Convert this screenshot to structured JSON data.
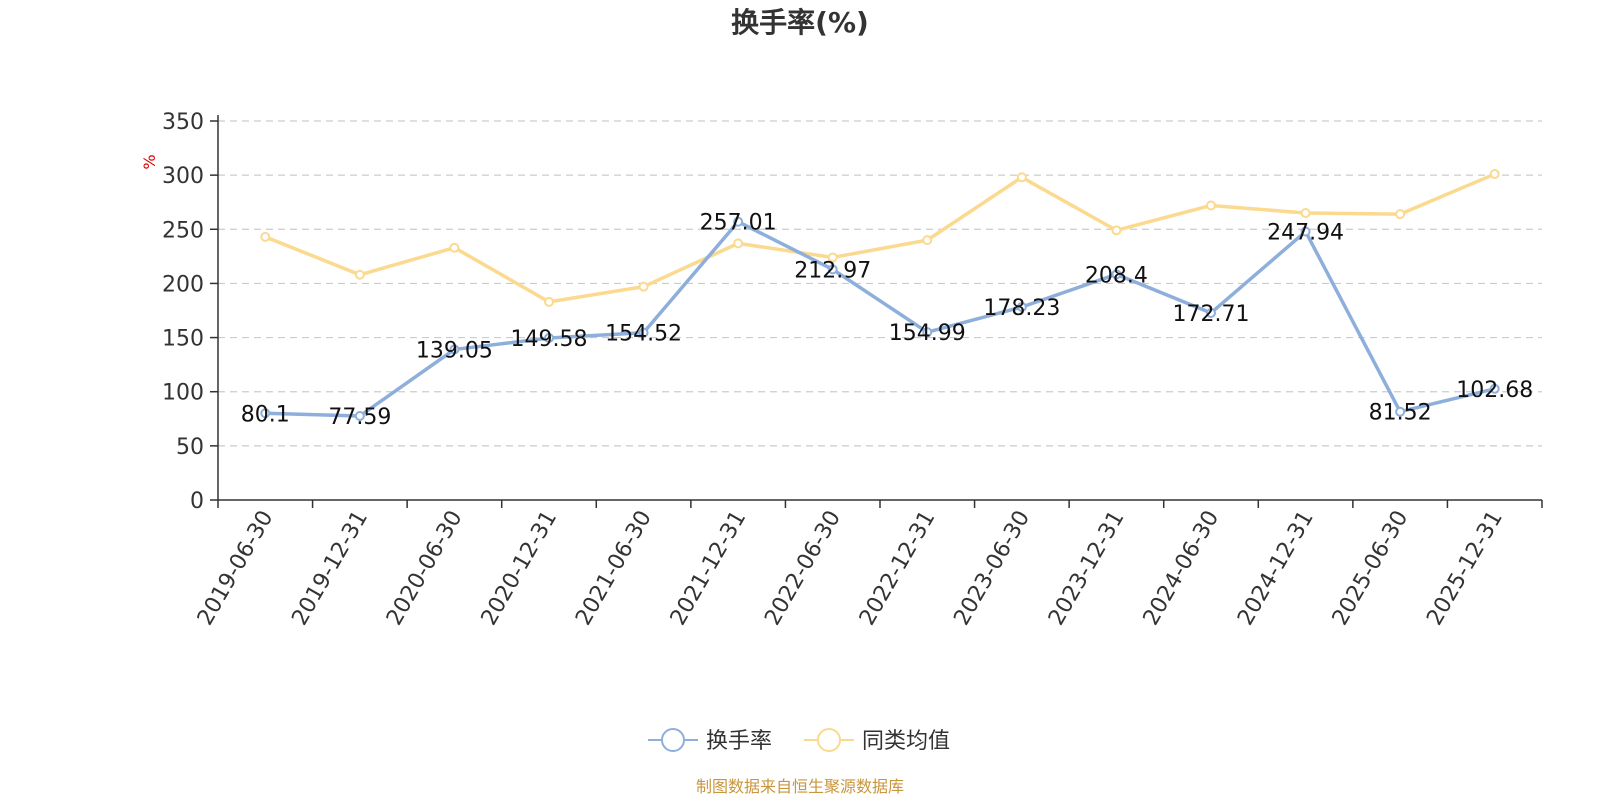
{
  "chart_data": {
    "type": "line",
    "title": "换手率(%)",
    "y_unit_label": "%",
    "categories": [
      "2019-06-30",
      "2019-12-31",
      "2020-06-30",
      "2020-12-31",
      "2021-06-30",
      "2021-12-31",
      "2022-06-30",
      "2022-12-31",
      "2023-06-30",
      "2023-12-31",
      "2024-06-30",
      "2024-12-31",
      "2025-06-30",
      "2025-12-31"
    ],
    "series": [
      {
        "name": "换手率",
        "color": "#8eaedb",
        "values": [
          80.1,
          77.59,
          139.05,
          149.58,
          154.52,
          257.01,
          212.97,
          154.99,
          178.23,
          208.4,
          172.71,
          247.94,
          81.52,
          102.68
        ],
        "labels": [
          "80.1",
          "77.59",
          "139.05",
          "149.58",
          "154.52",
          "257.01",
          "212.97",
          "154.99",
          "178.23",
          "208.4",
          "172.71",
          "247.94",
          "81.52",
          "102.68"
        ]
      },
      {
        "name": "同类均值",
        "color": "#fbd98f",
        "values": [
          243,
          208,
          233,
          183,
          197,
          237,
          224,
          240,
          298,
          249,
          272,
          265,
          264,
          301
        ]
      }
    ],
    "ylim": [
      0,
      350
    ],
    "yticks": [
      "0",
      "50",
      "100",
      "150",
      "200",
      "250",
      "300",
      "350"
    ],
    "grid": true,
    "legend_position": "bottom-center"
  },
  "source_note": "制图数据来自恒生聚源数据库"
}
